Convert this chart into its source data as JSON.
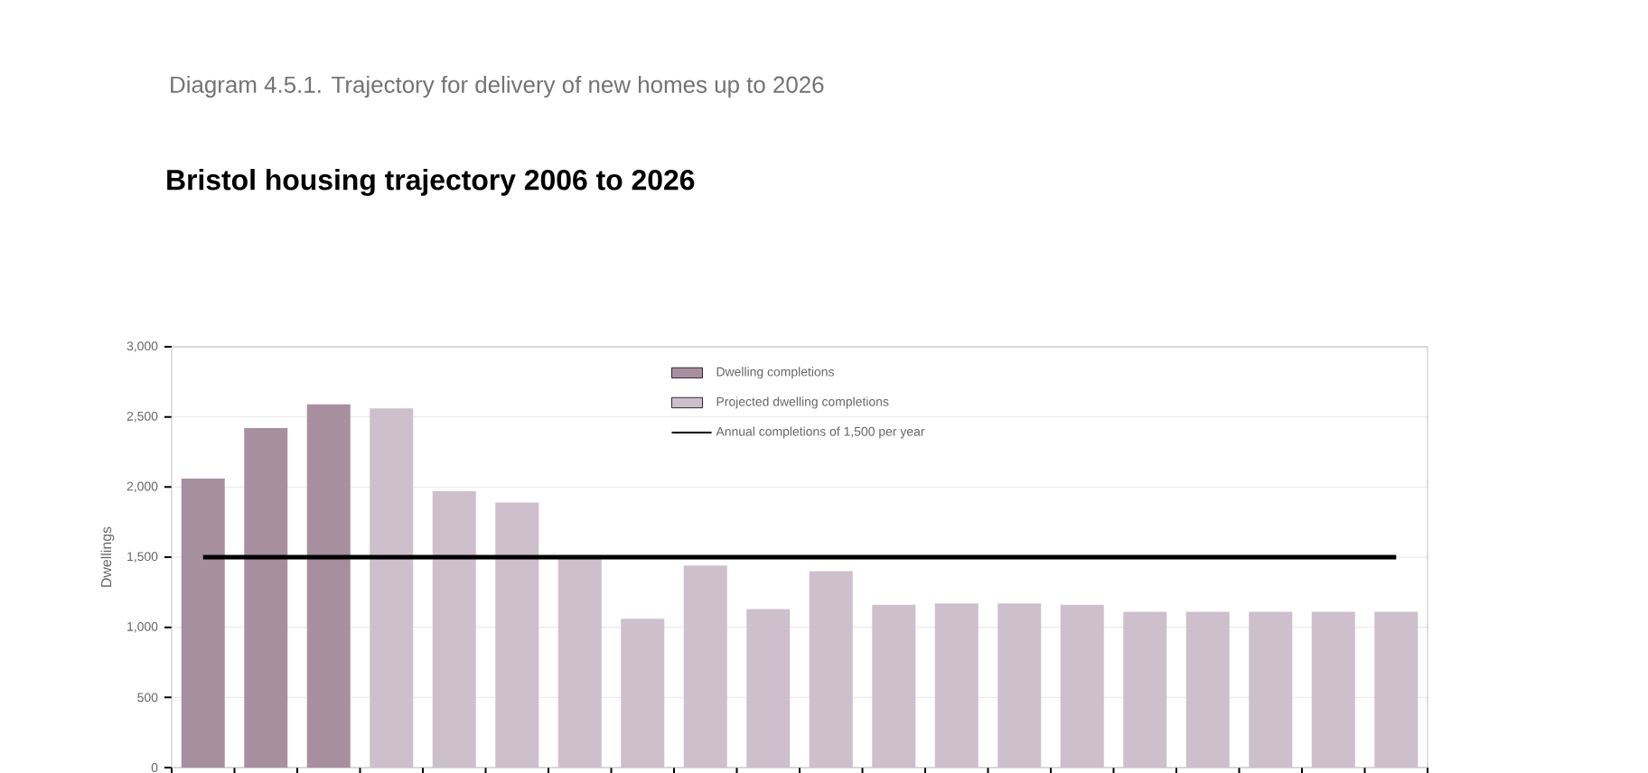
{
  "chart_data": {
    "type": "bar",
    "title": "Bristol housing trajectory 2006 to 2026",
    "annotations": [
      "Diagram 4.5.1.      Trajectory for delivery of new homes up to 2026"
    ],
    "ylabel": "Dwellings",
    "categories": [
      null,
      null,
      null,
      null,
      null,
      null,
      null,
      null,
      null,
      null,
      null,
      null,
      null,
      null,
      null,
      null,
      null,
      null,
      null,
      null
    ],
    "series": [
      {
        "name": "Dwelling completions",
        "color": "#a88fa0",
        "values": [
          2060,
          2420,
          2590,
          null,
          null,
          null,
          null,
          null,
          null,
          null,
          null,
          null,
          null,
          null,
          null,
          null,
          null,
          null,
          null,
          null
        ]
      },
      {
        "name": "Projected dwelling completions",
        "color": "#cdbfcc",
        "values": [
          null,
          null,
          null,
          2560,
          1970,
          1890,
          1500,
          1060,
          1440,
          1130,
          1400,
          1160,
          1170,
          1170,
          1160,
          1110,
          1110,
          1110,
          1110,
          1110
        ]
      }
    ],
    "ref_lines": [
      {
        "axis": "y",
        "value": 1500,
        "label": "Annual completions of 1,500 per year",
        "color": "#000000"
      }
    ],
    "ylim": [
      0,
      3000
    ],
    "yticks": [
      0,
      500,
      {
        "value": 1000,
        "label": "1,000"
      },
      {
        "value": 1500,
        "label": "1,500"
      },
      {
        "value": 2000,
        "label": "2,000"
      },
      {
        "value": 2500,
        "label": "2,500"
      },
      {
        "value": 3000,
        "label": "3,000"
      }
    ],
    "grid": "y",
    "legend": "top"
  }
}
